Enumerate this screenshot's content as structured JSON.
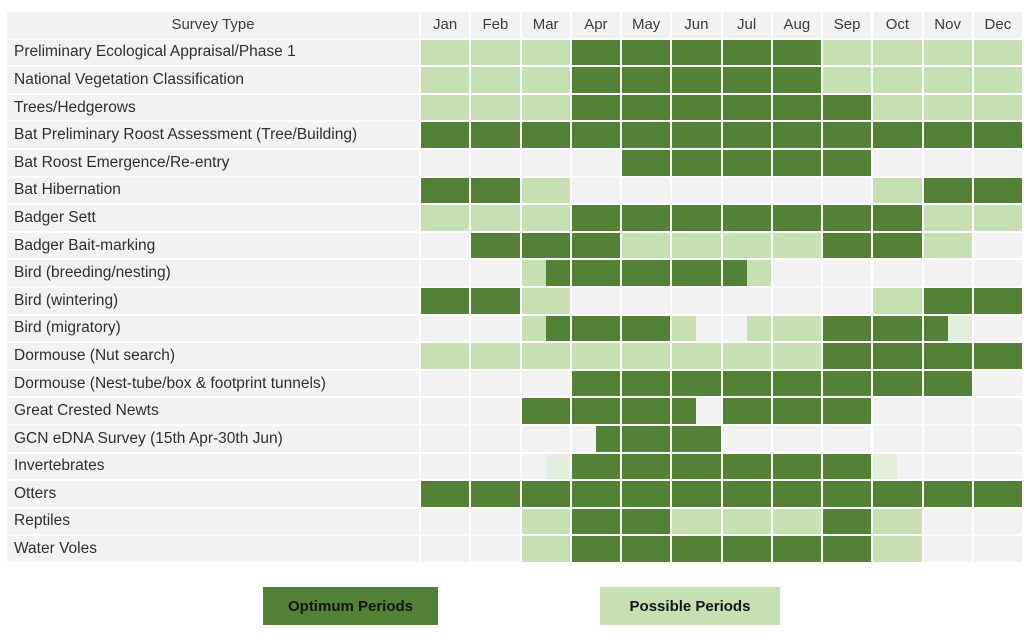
{
  "colors": {
    "optimum": "#538135",
    "possible": "#c6e0b4",
    "possible_pale": "#e2efda",
    "empty": "#f2f2f2",
    "grid_gap": "#ffffff",
    "header_text": "#3b3b3b"
  },
  "legend": {
    "optimum_label": "Optimum Periods",
    "possible_label": "Possible Periods"
  },
  "chart_data": {
    "type": "heatmap",
    "row_header": "Survey Type",
    "columns": [
      "Jan",
      "Feb",
      "Mar",
      "Apr",
      "May",
      "Jun",
      "Jul",
      "Aug",
      "Sep",
      "Oct",
      "Nov",
      "Dec"
    ],
    "legend": [
      {
        "label": "Optimum Periods",
        "color": "#538135",
        "code": "O"
      },
      {
        "label": "Possible Periods",
        "color": "#c6e0b4",
        "code": "P"
      }
    ],
    "cell_codes": {
      "O": "optimum period (dark green)",
      "P": "possible period (light green)",
      "PP": "possible period pale tint (partial month)",
      "N": "no survey (blank)",
      "split_notation": "two half-month segments separated by |"
    },
    "rows": [
      {
        "label": "Preliminary Ecological Appraisal/Phase 1",
        "months": [
          "P",
          "P",
          "P",
          "O",
          "O",
          "O",
          "O",
          "O",
          "P",
          "P",
          "P",
          "P"
        ]
      },
      {
        "label": "National Vegetation Classification",
        "months": [
          "P",
          "P",
          "P",
          "O",
          "O",
          "O",
          "O",
          "O",
          "P",
          "P",
          "P",
          "P"
        ]
      },
      {
        "label": "Trees/Hedgerows",
        "months": [
          "P",
          "P",
          "P",
          "O",
          "O",
          "O",
          "O",
          "O",
          "O",
          "P",
          "P",
          "P"
        ]
      },
      {
        "label": "Bat Preliminary Roost Assessment (Tree/Building)",
        "months": [
          "O",
          "O",
          "O",
          "O",
          "O",
          "O",
          "O",
          "O",
          "O",
          "O",
          "O",
          "O"
        ]
      },
      {
        "label": "Bat Roost Emergence/Re-entry",
        "months": [
          "N",
          "N",
          "N",
          "N",
          "O",
          "O",
          "O",
          "O",
          "O",
          "N",
          "N",
          "N"
        ]
      },
      {
        "label": "Bat Hibernation",
        "months": [
          "O",
          "O",
          "P",
          "N",
          "N",
          "N",
          "N",
          "N",
          "N",
          "P",
          "O",
          "O"
        ]
      },
      {
        "label": "Badger Sett",
        "months": [
          "P",
          "P",
          "P",
          "O",
          "O",
          "O",
          "O",
          "O",
          "O",
          "O",
          "P",
          "P"
        ]
      },
      {
        "label": "Badger Bait-marking",
        "months": [
          "N",
          "O",
          "O",
          "O",
          "P",
          "P",
          "P",
          "P",
          "O",
          "O",
          "P",
          "N"
        ]
      },
      {
        "label": "Bird (breeding/nesting)",
        "months": [
          "N",
          "N",
          "P|O",
          "O",
          "O",
          "O",
          "O|P",
          "N",
          "N",
          "N",
          "N",
          "N"
        ]
      },
      {
        "label": "Bird (wintering)",
        "months": [
          "O",
          "O",
          "P",
          "N",
          "N",
          "N",
          "N",
          "N",
          "N",
          "P",
          "O",
          "O"
        ]
      },
      {
        "label": "Bird (migratory)",
        "months": [
          "N",
          "N",
          "P|O",
          "O",
          "O",
          "P|N",
          "N|P",
          "P",
          "O",
          "O",
          "O|PP",
          "N"
        ]
      },
      {
        "label": "Dormouse (Nut search)",
        "months": [
          "P",
          "P",
          "P",
          "P",
          "P",
          "P",
          "P",
          "P",
          "O",
          "O",
          "O",
          "O"
        ]
      },
      {
        "label": "Dormouse (Nest-tube/box & footprint tunnels)",
        "months": [
          "N",
          "N",
          "N",
          "O",
          "O",
          "O",
          "O",
          "O",
          "O",
          "O",
          "O",
          "N"
        ]
      },
      {
        "label": "Great Crested Newts",
        "months": [
          "N",
          "N",
          "O",
          "O",
          "O",
          "O|N",
          "O",
          "O",
          "O",
          "N",
          "N",
          "N"
        ]
      },
      {
        "label": "GCN eDNA Survey (15th Apr-30th Jun)",
        "months": [
          "N",
          "N",
          "N",
          "N|O",
          "O",
          "O",
          "N",
          "N",
          "N",
          "N",
          "N",
          "N"
        ]
      },
      {
        "label": "Invertebrates",
        "months": [
          "N",
          "N",
          "N|PP",
          "O",
          "O",
          "O",
          "O",
          "O",
          "O",
          "PP|N",
          "N",
          "N"
        ]
      },
      {
        "label": "Otters",
        "months": [
          "O",
          "O",
          "O",
          "O",
          "O",
          "O",
          "O",
          "O",
          "O",
          "O",
          "O",
          "O"
        ]
      },
      {
        "label": "Reptiles",
        "months": [
          "N",
          "N",
          "P",
          "O",
          "O",
          "P",
          "P",
          "P",
          "O",
          "P",
          "N",
          "N"
        ]
      },
      {
        "label": "Water Voles",
        "months": [
          "N",
          "N",
          "P",
          "O",
          "O",
          "O",
          "O",
          "O",
          "O",
          "P",
          "N",
          "N"
        ]
      }
    ]
  }
}
